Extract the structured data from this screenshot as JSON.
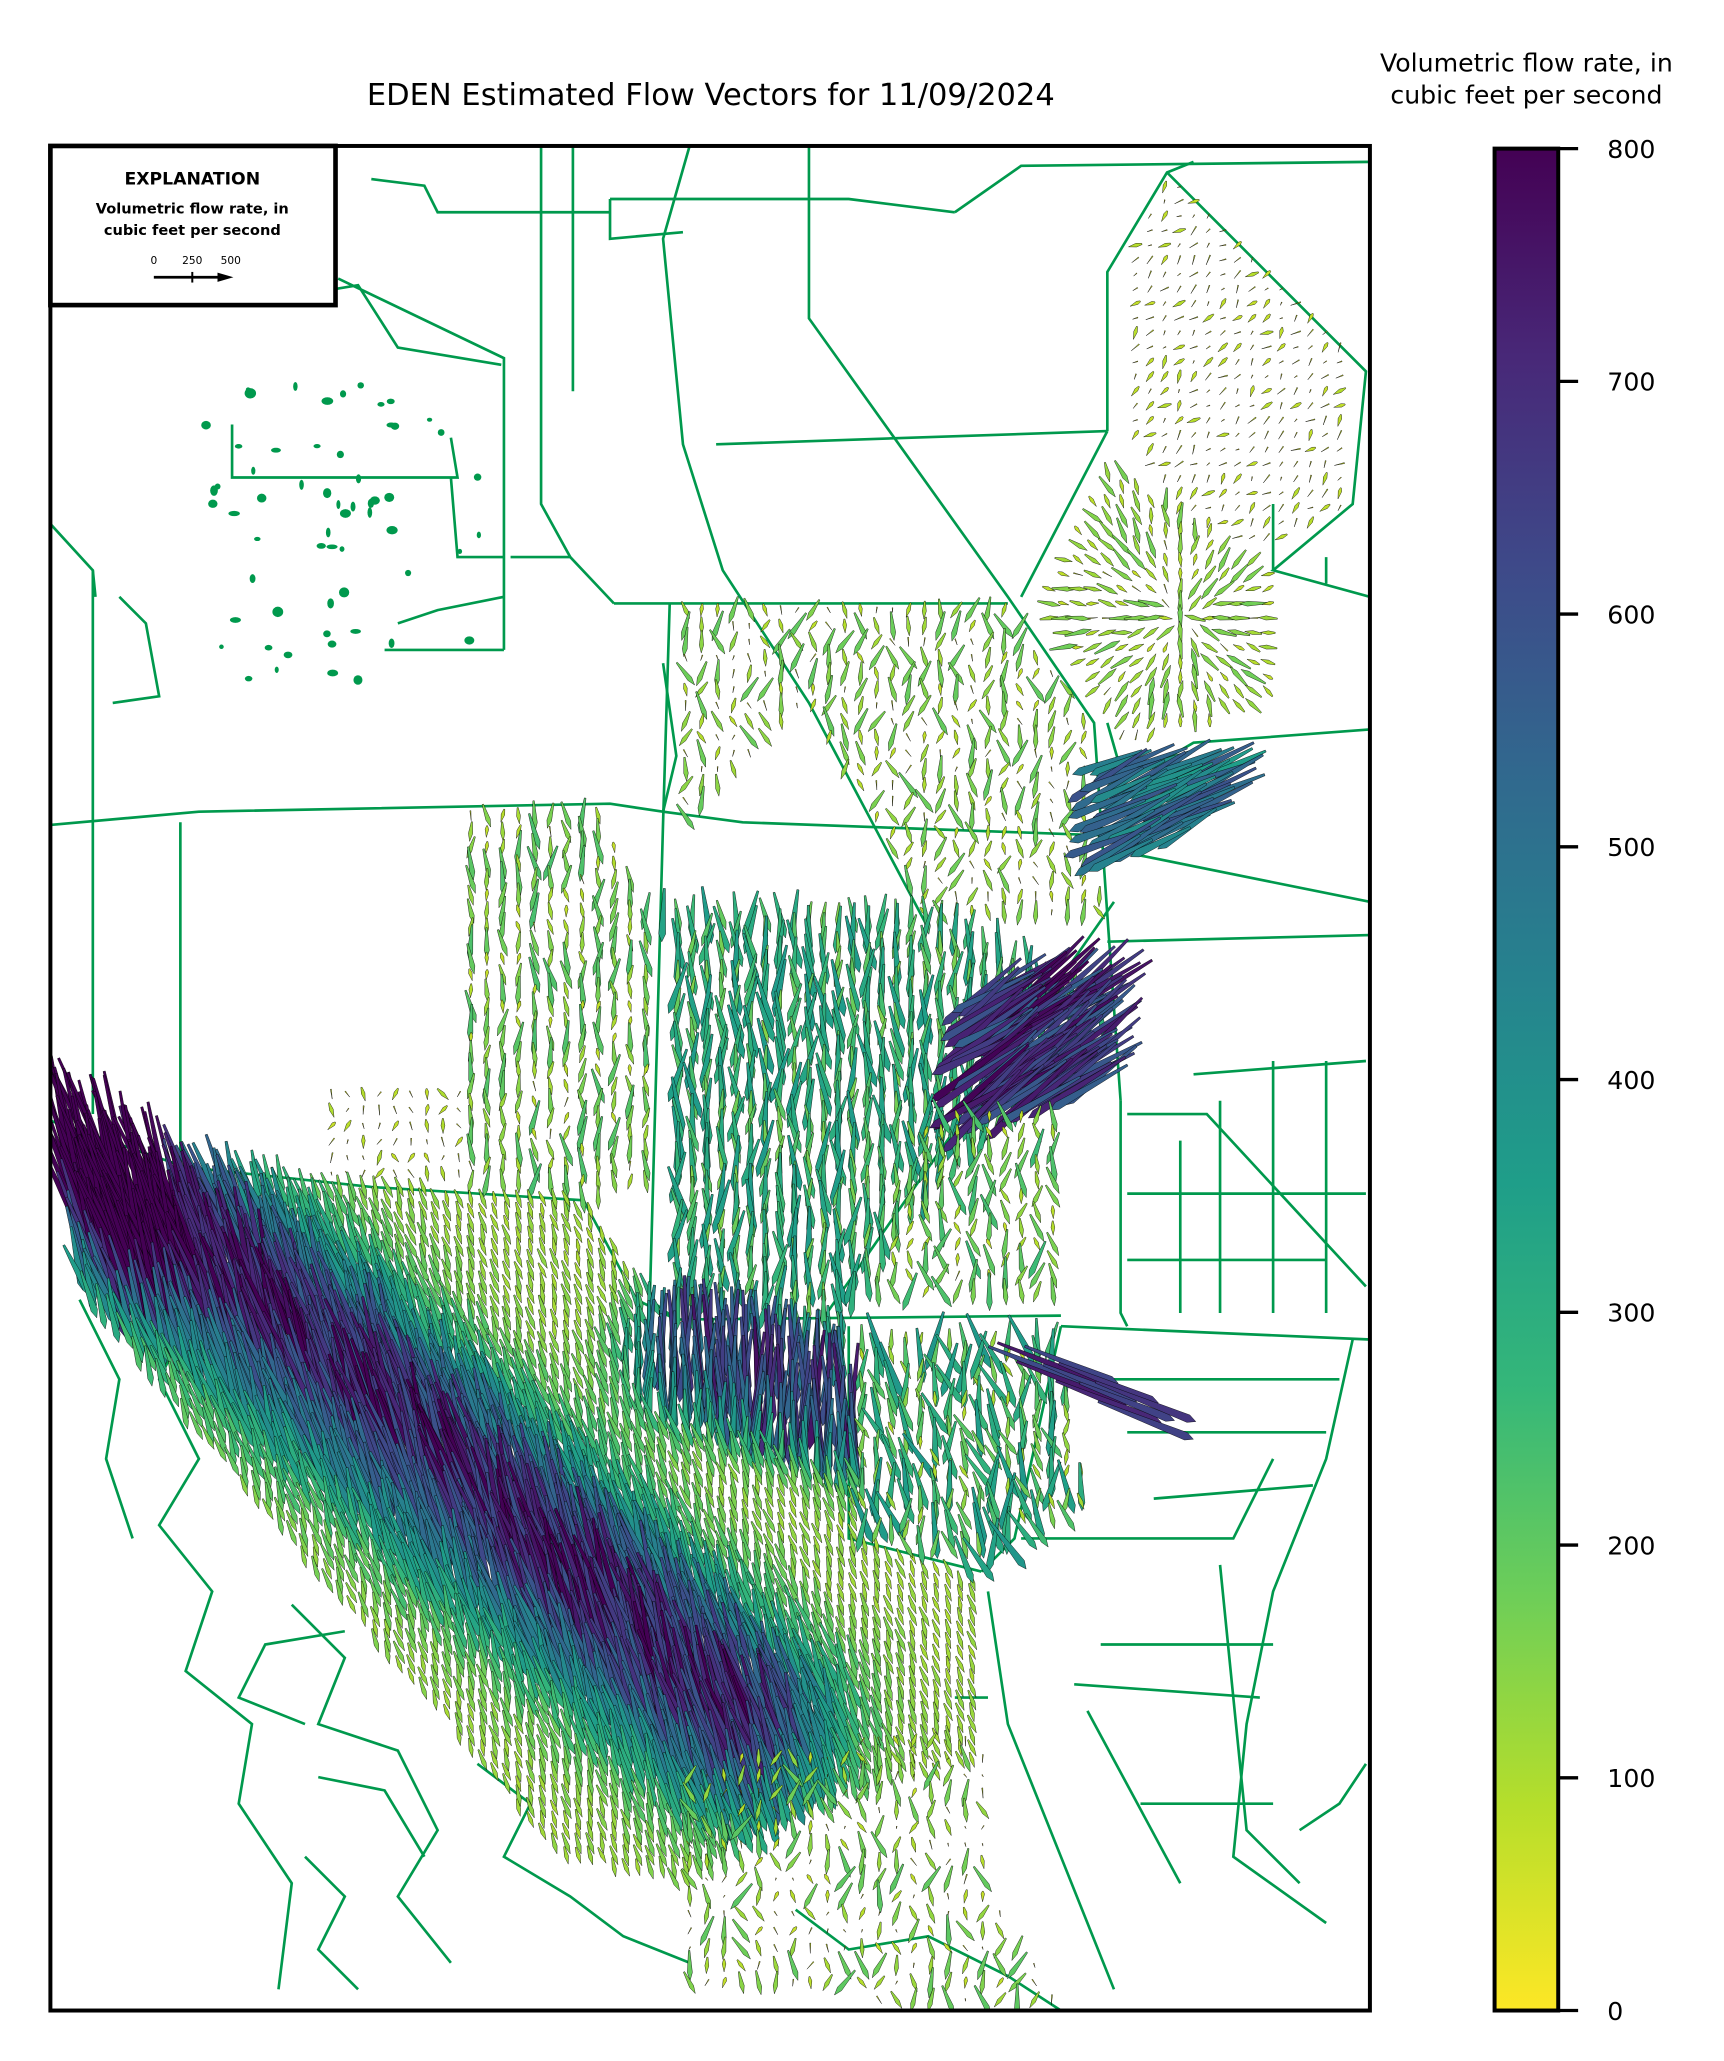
{
  "title": "EDEN Estimated Flow Vectors for 11/09/2024",
  "colorbar": {
    "label_line1": "Volumetric flow rate, in",
    "label_line2": "cubic feet per second",
    "min": 0,
    "max": 800,
    "ticks": [
      "0",
      "100",
      "200",
      "300",
      "400",
      "500",
      "600",
      "700",
      "800"
    ],
    "colormap": "viridis_r",
    "low_color": "#fde725",
    "high_color": "#440154"
  },
  "explanation": {
    "heading": "EXPLANATION",
    "line1": "Volumetric flow rate, in",
    "line2": "cubic feet per second",
    "scale_labels": [
      "0",
      "250",
      "500"
    ]
  },
  "colors": {
    "boundary_lines": "#00994d",
    "frame": "#000000"
  }
}
